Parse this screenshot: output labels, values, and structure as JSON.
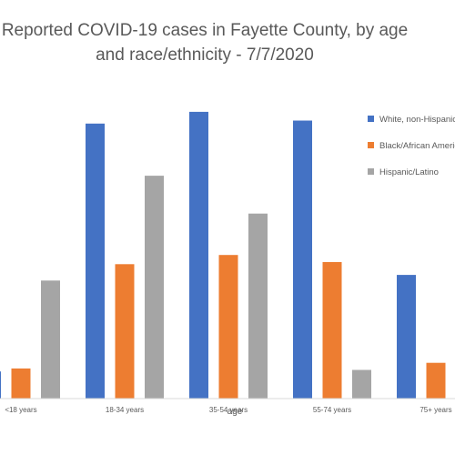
{
  "chart_data": {
    "type": "bar",
    "title": "Reported COVID-19 cases in Fayette County, by age and race/ethnicity - 7/7/2020",
    "xlabel": "age",
    "ylabel": "",
    "categories": [
      "<18 years",
      "18-34 years",
      "35-54 years",
      "55-74 years",
      "75+ years"
    ],
    "series": [
      {
        "name": "White, non-Hispanic",
        "color": "#4472C4",
        "values": [
          53,
          538,
          561,
          544,
          242
        ]
      },
      {
        "name": "Black/African American",
        "color": "#ED7D31",
        "values": [
          59,
          263,
          281,
          267,
          70
        ]
      },
      {
        "name": "Hispanic/Latino",
        "color": "#A5A5A5",
        "values": [
          231,
          436,
          362,
          56,
          0
        ]
      }
    ],
    "ylim": [
      0,
      600
    ],
    "grid": false,
    "legend_position": "right"
  }
}
